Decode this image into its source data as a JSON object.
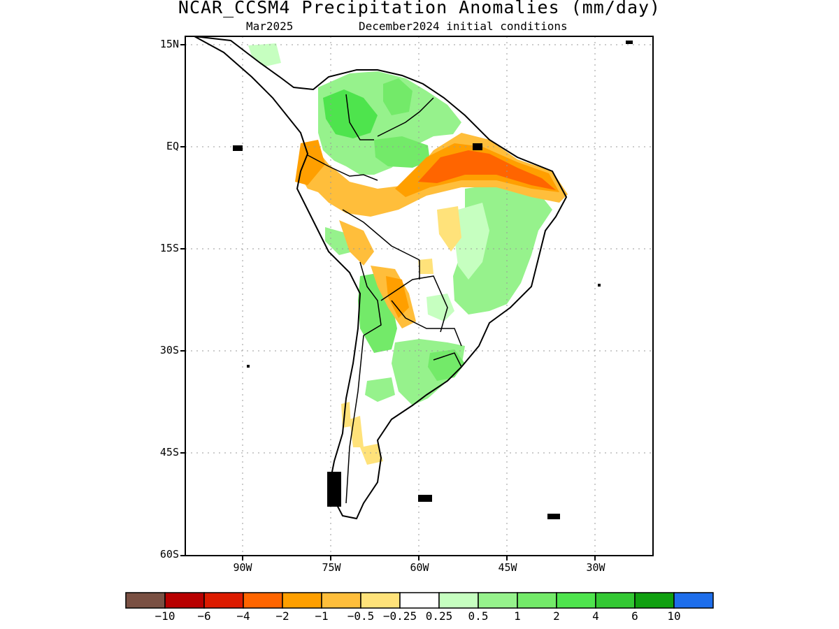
{
  "title": "NCAR_CCSM4 Precipitation Anomalies (mm/day)",
  "subtitle_left": "Mar2025",
  "subtitle_right": "December2024 initial conditions",
  "map": {
    "y_ticks": [
      "15N",
      "EQ",
      "15S",
      "30S",
      "45S",
      "60S"
    ],
    "x_ticks": [
      "90W",
      "75W",
      "60W",
      "45W",
      "30W"
    ],
    "lat_range": [
      15,
      -60
    ],
    "lon_range": [
      -100,
      -20
    ],
    "grid": true,
    "region": "South America"
  },
  "colorbar": {
    "colors": [
      "#7a5043",
      "#b80000",
      "#dc1b00",
      "#ff6500",
      "#ff9f00",
      "#ffbe3b",
      "#ffe27a",
      "#ffffff",
      "#c6ffc0",
      "#96f28c",
      "#73ea69",
      "#4ee44d",
      "#33c833",
      "#10a010",
      "#1e6eeb"
    ],
    "labels": [
      "−10",
      "−6",
      "−4",
      "−2",
      "−1",
      "−0.5",
      "−0.25",
      "0.25",
      "0.5",
      "1",
      "2",
      "4",
      "6",
      "10"
    ]
  }
}
